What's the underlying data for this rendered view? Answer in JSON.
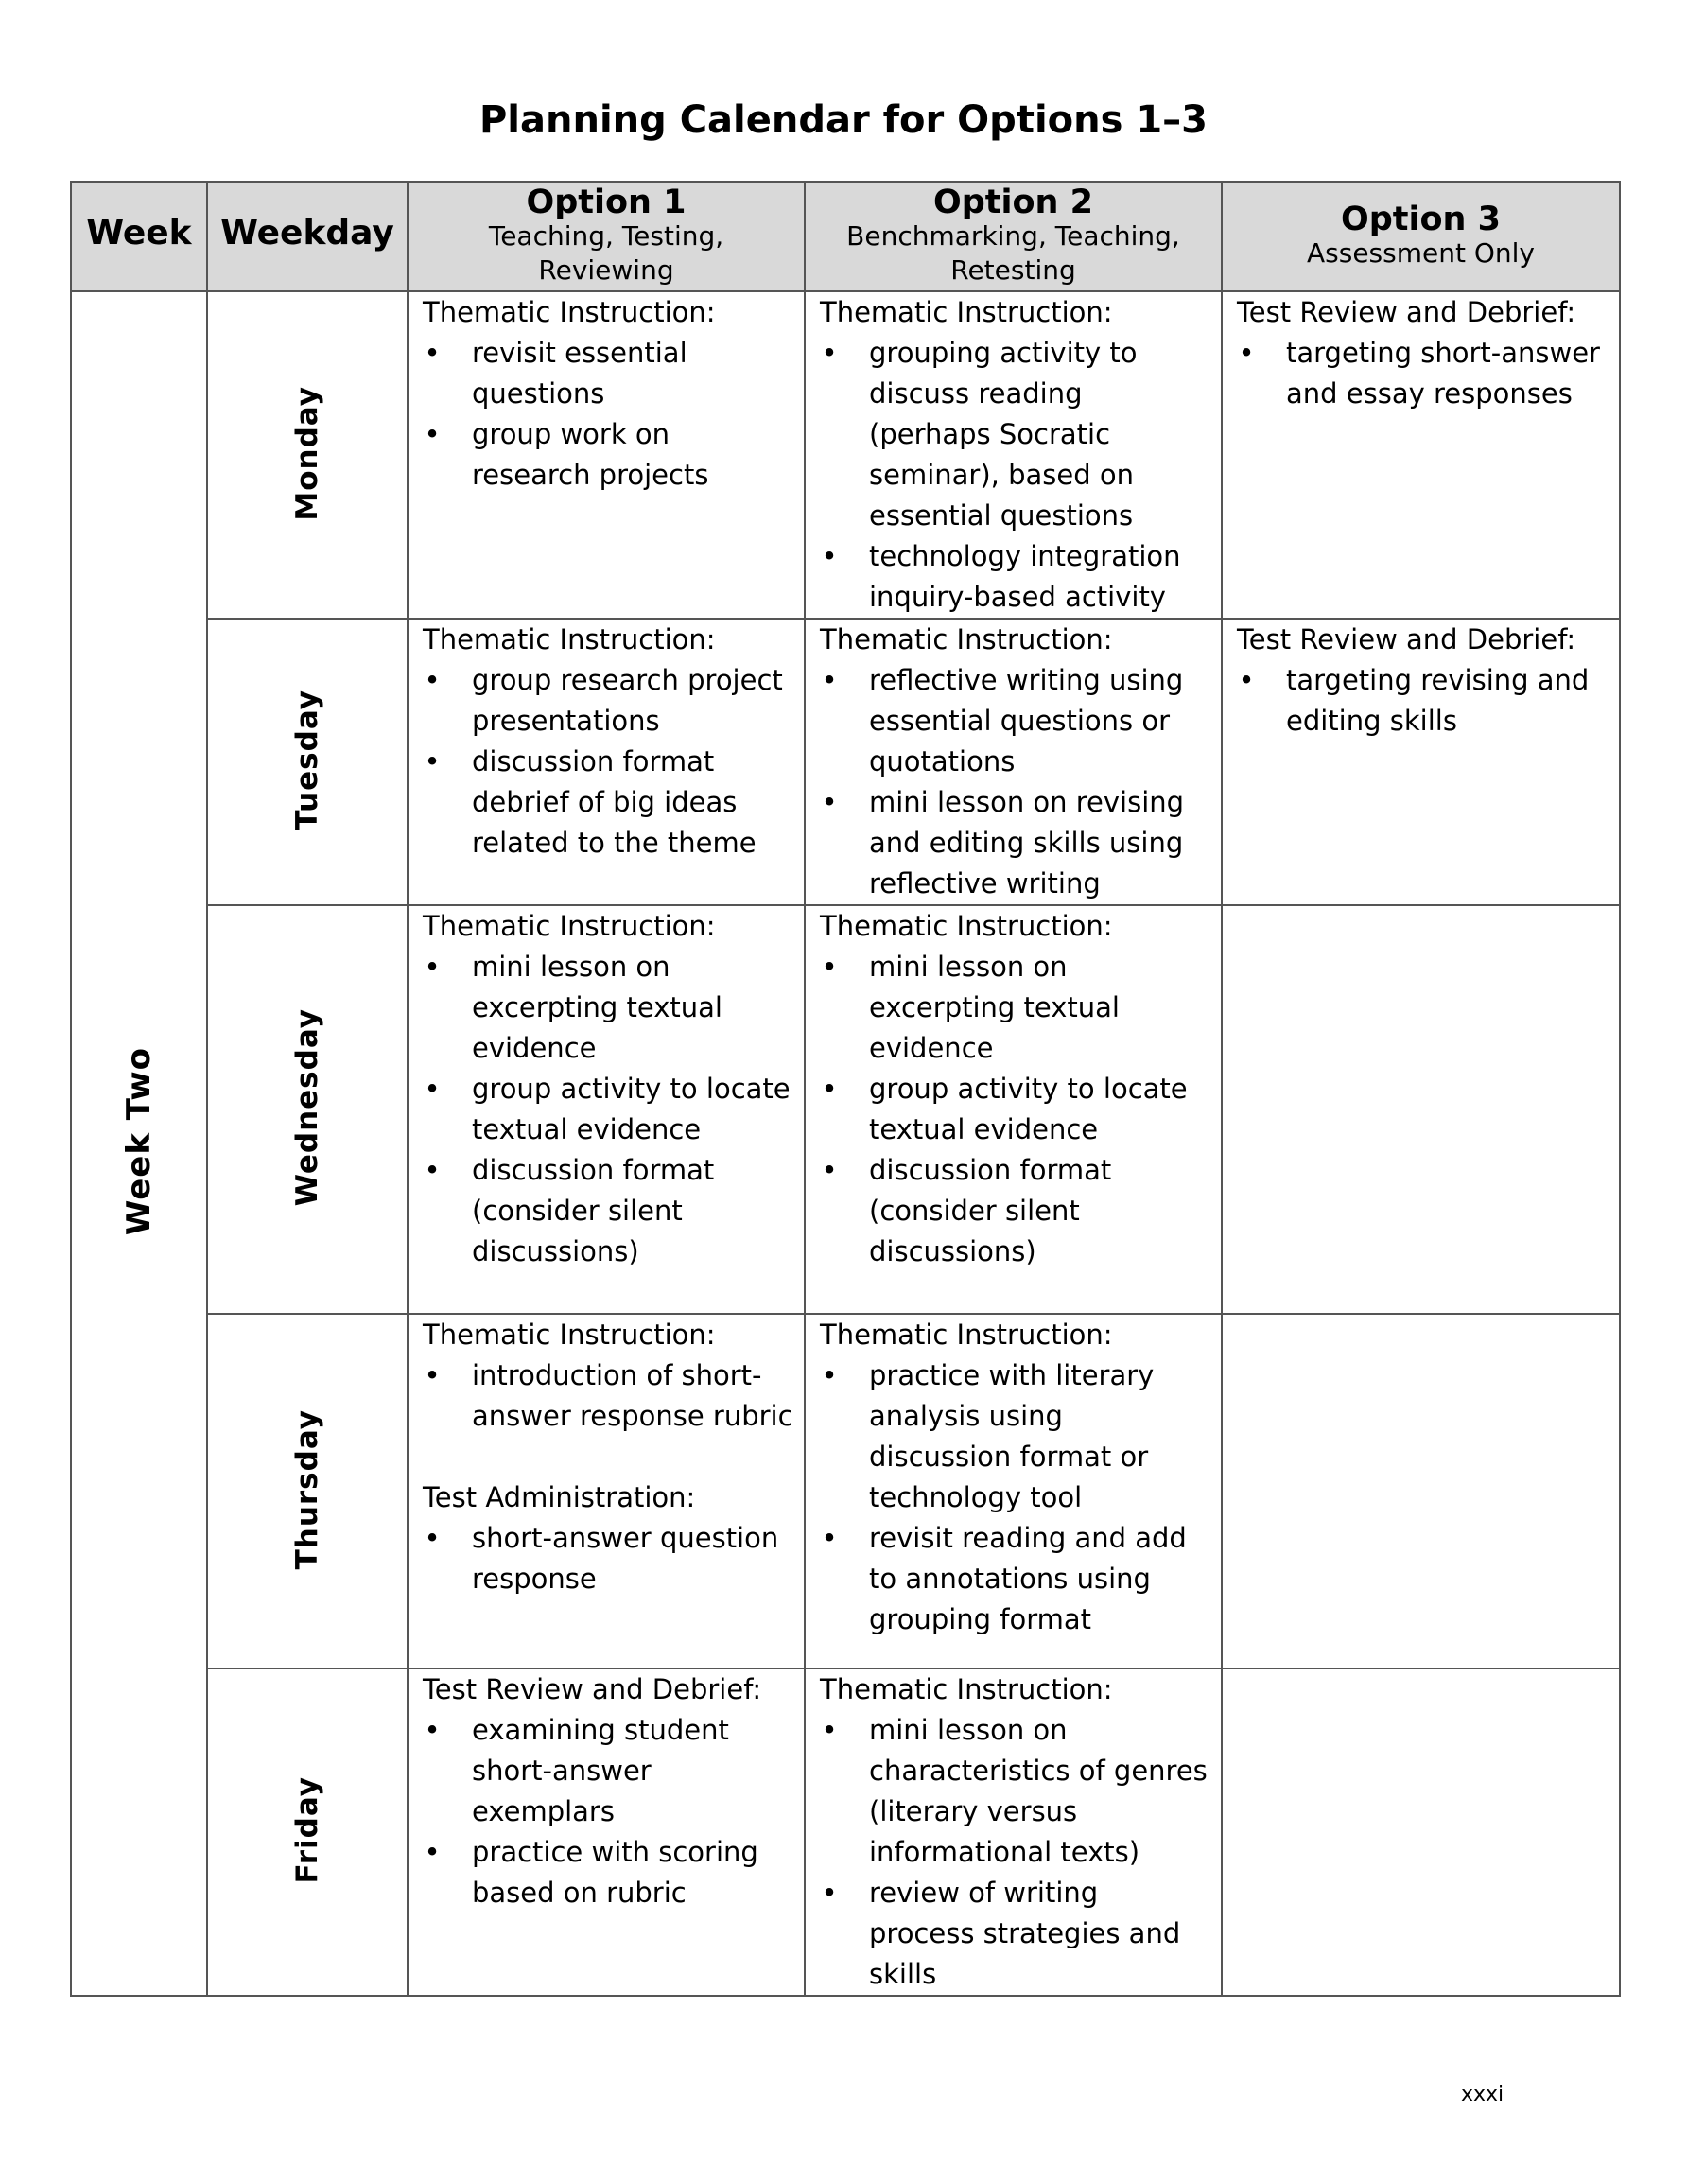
{
  "title": "Planning Calendar for Options 1–3",
  "header": {
    "week": "Week",
    "weekday": "Weekday",
    "options": [
      {
        "name": "Option 1",
        "subtitle": "Teaching, Testing, Reviewing"
      },
      {
        "name": "Option 2",
        "subtitle": "Benchmarking, Teaching, Retesting"
      },
      {
        "name": "Option 3",
        "subtitle": "Assessment Only"
      }
    ]
  },
  "week_label": "Week Two",
  "rows": [
    {
      "day": "Monday",
      "o1": {
        "heading": "Thematic Instruction:",
        "items": [
          "revisit essential questions",
          "group work on research projects"
        ]
      },
      "o2": {
        "heading": "Thematic Instruction:",
        "items": [
          "grouping activity to discuss reading (perhaps Socratic seminar), based on essential questions",
          "technology integration inquiry-based activity"
        ]
      },
      "o3": {
        "heading": "Test Review and Debrief:",
        "items": [
          "targeting short-answer and essay responses"
        ]
      }
    },
    {
      "day": "Tuesday",
      "o1": {
        "heading": "Thematic Instruction:",
        "items": [
          "group research project presentations",
          "discussion format debrief of big ideas related to the theme"
        ]
      },
      "o2": {
        "heading": "Thematic Instruction:",
        "items": [
          "reflective writing using essential questions or quotations",
          "mini lesson on revising and editing skills using reflective writing"
        ]
      },
      "o3": {
        "heading": "Test Review and Debrief:",
        "items": [
          "targeting revising and editing skills"
        ]
      }
    },
    {
      "day": "Wednesday",
      "o1": {
        "heading": "Thematic Instruction:",
        "items": [
          "mini lesson on excerpting textual evidence",
          "group activity to locate textual evidence",
          "discussion format (consider silent discussions)"
        ]
      },
      "o2": {
        "heading": "Thematic Instruction:",
        "items": [
          "mini lesson on excerpting textual evidence",
          "group activity to locate textual evidence",
          "discussion format (consider silent discussions)"
        ]
      }
    },
    {
      "day": "Thursday",
      "o1": {
        "heading": "Thematic Instruction:",
        "items": [
          "introduction of short-answer response rubric"
        ],
        "heading2": "Test Administration:",
        "items2": [
          "short-answer question response"
        ]
      },
      "o2": {
        "heading": "Thematic Instruction:",
        "items": [
          "practice with literary analysis using discussion format or technology tool",
          "revisit reading and add to annotations using grouping format"
        ]
      }
    },
    {
      "day": "Friday",
      "o1": {
        "heading": "Test Review and Debrief:",
        "items": [
          "examining student short-answer exemplars",
          "practice with scoring based on rubric"
        ]
      },
      "o2": {
        "heading": "Thematic Instruction:",
        "items": [
          "mini lesson on characteristics of genres (literary versus informational texts)",
          "review of writing process strategies and skills"
        ]
      }
    }
  ],
  "page_number": "xxxi"
}
